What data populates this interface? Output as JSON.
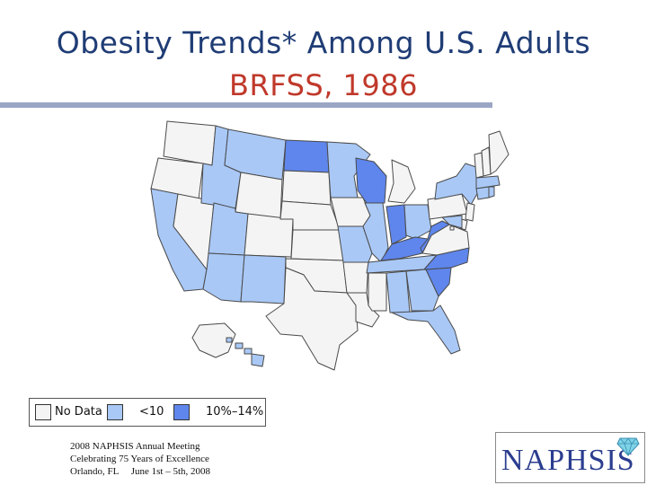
{
  "title": {
    "line1": "Obesity Trends* Among U.S. Adults",
    "line2": "BRFSS, 1986"
  },
  "colors": {
    "no_data": "#f4f4f4",
    "lt10": "#a9c8f6",
    "p10_14": "#5f86ec",
    "title_blue": "#1f3c75",
    "title_red": "#c0392b",
    "rule": "#9aa6c4"
  },
  "legend": {
    "items": [
      {
        "label": "No Data",
        "category": "no_data"
      },
      {
        "label": "<10",
        "category": "lt10"
      },
      {
        "label": "10%–14%",
        "category": "p10_14"
      }
    ]
  },
  "states": [
    {
      "name": "WA",
      "category": "no_data"
    },
    {
      "name": "OR",
      "category": "no_data"
    },
    {
      "name": "CA",
      "category": "lt10"
    },
    {
      "name": "NV",
      "category": "no_data"
    },
    {
      "name": "ID",
      "category": "lt10"
    },
    {
      "name": "MT",
      "category": "lt10"
    },
    {
      "name": "WY",
      "category": "no_data"
    },
    {
      "name": "UT",
      "category": "lt10"
    },
    {
      "name": "AZ",
      "category": "lt10"
    },
    {
      "name": "CO",
      "category": "no_data"
    },
    {
      "name": "NM",
      "category": "lt10"
    },
    {
      "name": "ND",
      "category": "p10_14"
    },
    {
      "name": "SD",
      "category": "no_data"
    },
    {
      "name": "NE",
      "category": "no_data"
    },
    {
      "name": "KS",
      "category": "no_data"
    },
    {
      "name": "OK",
      "category": "no_data"
    },
    {
      "name": "TX",
      "category": "no_data"
    },
    {
      "name": "MN",
      "category": "lt10"
    },
    {
      "name": "IA",
      "category": "no_data"
    },
    {
      "name": "MO",
      "category": "lt10"
    },
    {
      "name": "AR",
      "category": "no_data"
    },
    {
      "name": "LA",
      "category": "no_data"
    },
    {
      "name": "WI",
      "category": "p10_14"
    },
    {
      "name": "IL",
      "category": "lt10"
    },
    {
      "name": "MI",
      "category": "no_data"
    },
    {
      "name": "IN",
      "category": "p10_14"
    },
    {
      "name": "OH",
      "category": "lt10"
    },
    {
      "name": "KY",
      "category": "p10_14"
    },
    {
      "name": "TN",
      "category": "lt10"
    },
    {
      "name": "MS",
      "category": "no_data"
    },
    {
      "name": "AL",
      "category": "lt10"
    },
    {
      "name": "GA",
      "category": "lt10"
    },
    {
      "name": "FL",
      "category": "lt10"
    },
    {
      "name": "SC",
      "category": "p10_14"
    },
    {
      "name": "NC",
      "category": "p10_14"
    },
    {
      "name": "VA",
      "category": "no_data"
    },
    {
      "name": "WV",
      "category": "p10_14"
    },
    {
      "name": "PA",
      "category": "no_data"
    },
    {
      "name": "NY",
      "category": "lt10"
    },
    {
      "name": "VT",
      "category": "no_data"
    },
    {
      "name": "NH",
      "category": "no_data"
    },
    {
      "name": "ME",
      "category": "no_data"
    },
    {
      "name": "MA",
      "category": "lt10"
    },
    {
      "name": "CT",
      "category": "lt10"
    },
    {
      "name": "RI",
      "category": "lt10"
    },
    {
      "name": "NJ",
      "category": "no_data"
    },
    {
      "name": "DE",
      "category": "no_data"
    },
    {
      "name": "MD",
      "category": "lt10"
    },
    {
      "name": "DC",
      "category": "no_data"
    },
    {
      "name": "AK",
      "category": "no_data"
    },
    {
      "name": "HI",
      "category": "lt10"
    }
  ],
  "footer": {
    "line1": "2008 NAPHSIS Annual Meeting",
    "line2": "Celebrating 75 Years of Excellence",
    "line3": "Orlando, FL     June 1st – 5th, 2008"
  },
  "logo": {
    "text": "NAPHSIS",
    "icon": "diamond-icon"
  }
}
